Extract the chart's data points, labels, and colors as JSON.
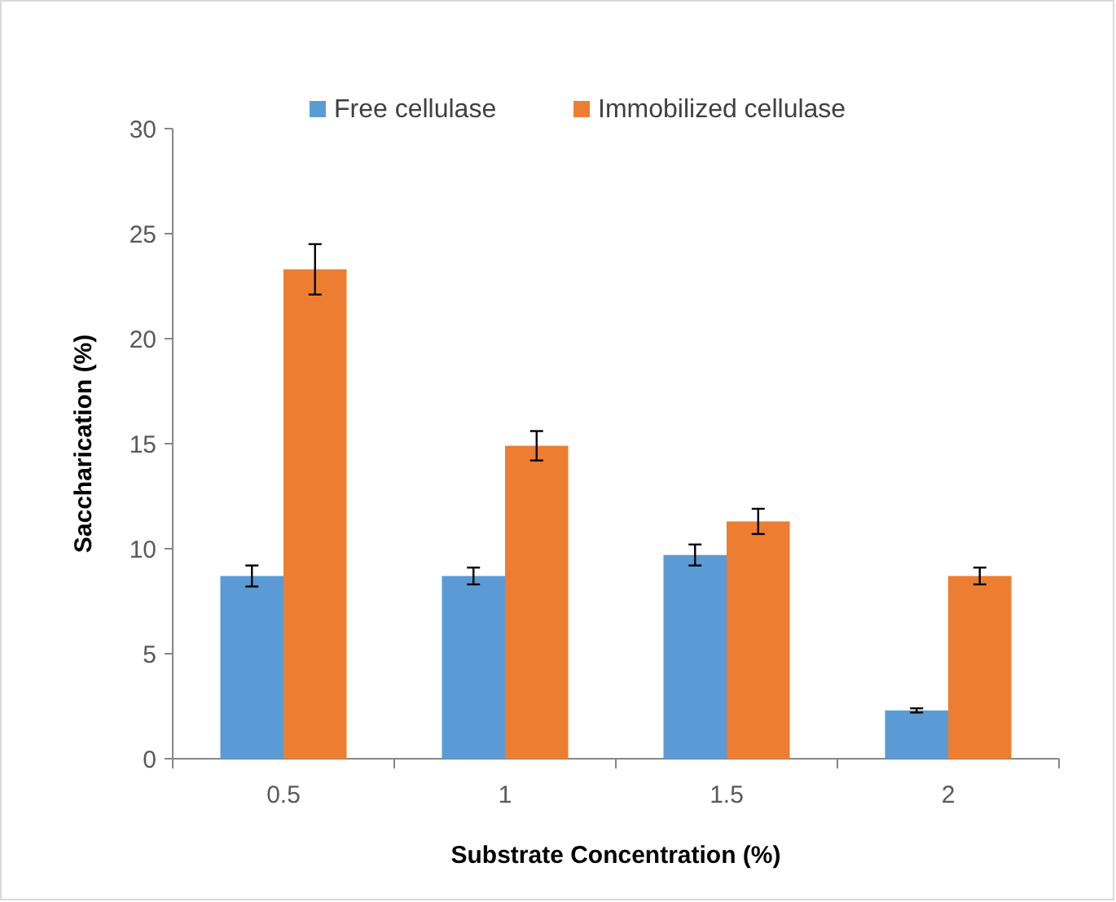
{
  "chart_data": {
    "type": "bar",
    "xlabel": "Substrate Concentration (%)",
    "ylabel": "Saccharication (%)",
    "categories": [
      "0.5",
      "1",
      "1.5",
      "2"
    ],
    "series": [
      {
        "name": "Free cellulase",
        "color": "#5b9bd5",
        "values": [
          8.7,
          8.7,
          9.7,
          2.3
        ],
        "errors": [
          0.5,
          0.4,
          0.5,
          0.1
        ]
      },
      {
        "name": "Immobilized cellulase",
        "color": "#ed7d31",
        "values": [
          23.3,
          14.9,
          11.3,
          8.7
        ],
        "errors": [
          1.2,
          0.7,
          0.6,
          0.4
        ]
      }
    ],
    "ylim": [
      0,
      30
    ],
    "yticks": [
      0,
      5,
      10,
      15,
      20,
      25,
      30
    ],
    "grid": false,
    "legend": "top"
  }
}
